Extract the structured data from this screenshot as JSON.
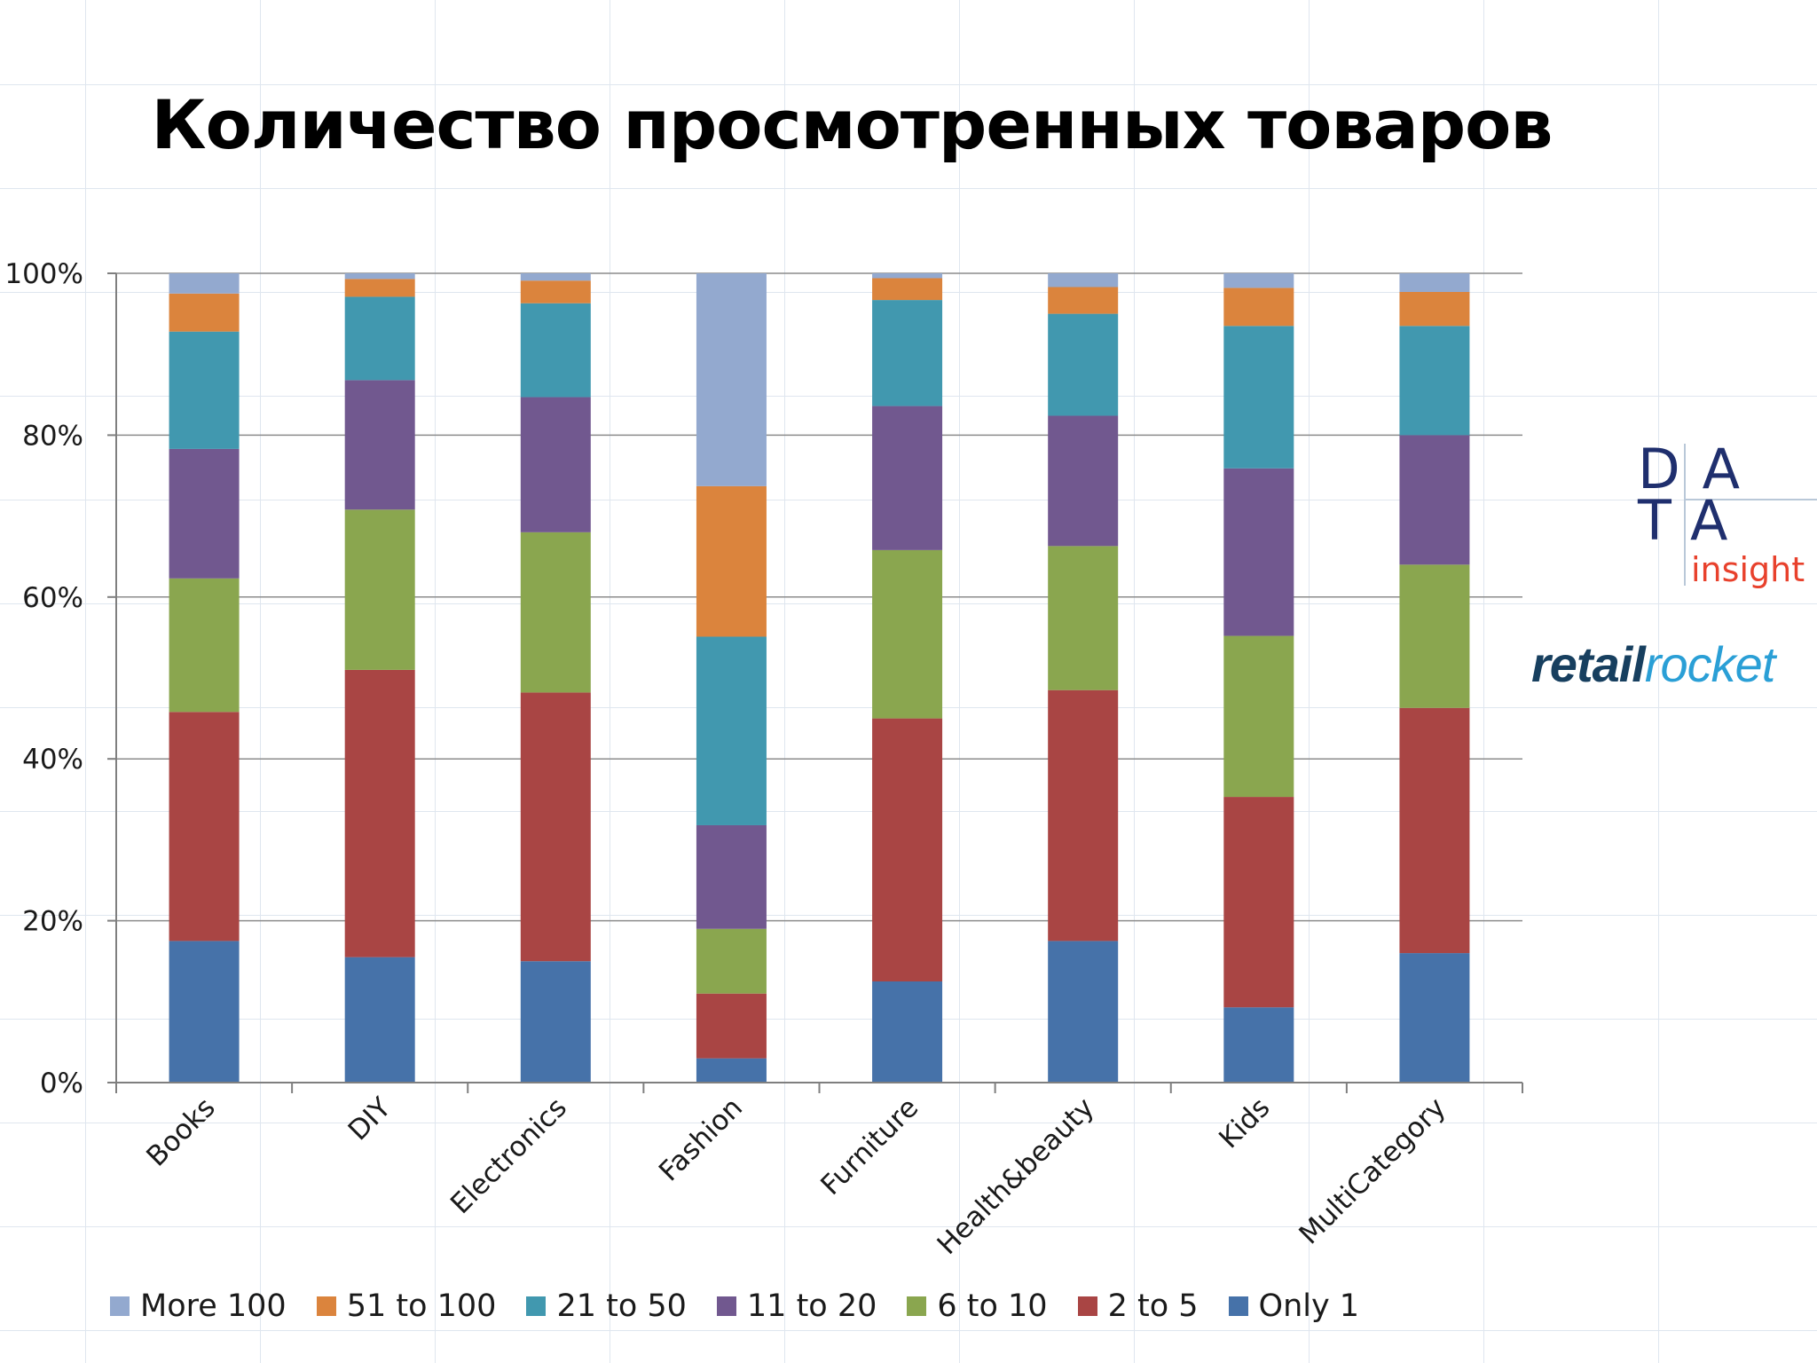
{
  "title": "Количество просмотренных товаров",
  "chart_data": {
    "type": "bar",
    "stacked": true,
    "normalized": true,
    "categories": [
      "Books",
      "DIY",
      "Electronics",
      "Fashion",
      "Furniture",
      "Health&beauty",
      "Kids",
      "MultiCategory"
    ],
    "series": [
      {
        "name": "Only 1",
        "color": "#4672a9",
        "values": [
          17.5,
          15.5,
          15.0,
          3.0,
          12.5,
          17.5,
          9.3,
          16.0
        ]
      },
      {
        "name": "2 to 5",
        "color": "#a94544",
        "values": [
          28.3,
          35.5,
          33.2,
          8.0,
          32.5,
          31.0,
          26.0,
          30.3
        ]
      },
      {
        "name": "6 to 10",
        "color": "#8aa64f",
        "values": [
          16.5,
          19.8,
          19.8,
          8.0,
          20.8,
          17.8,
          19.9,
          17.7
        ]
      },
      {
        "name": "11 to 20",
        "color": "#71588f",
        "values": [
          16.0,
          16.0,
          16.7,
          12.8,
          17.8,
          16.1,
          20.7,
          16.0
        ]
      },
      {
        "name": "21 to 50",
        "color": "#4198af",
        "values": [
          14.5,
          10.3,
          11.6,
          23.3,
          13.1,
          12.6,
          17.6,
          13.5
        ]
      },
      {
        "name": "51 to 100",
        "color": "#db843d",
        "values": [
          4.7,
          2.2,
          2.8,
          18.6,
          2.7,
          3.3,
          4.7,
          4.2
        ]
      },
      {
        "name": "More 100",
        "color": "#93a9cf",
        "values": [
          2.5,
          0.7,
          0.9,
          26.3,
          0.6,
          1.7,
          1.8,
          2.3
        ]
      }
    ],
    "y_ticks": [
      "0%",
      "20%",
      "40%",
      "60%",
      "80%",
      "100%"
    ],
    "ylim": [
      0,
      100
    ],
    "grid": true,
    "legend_position": "bottom"
  },
  "logos": {
    "data_insight": {
      "letters": "DATA",
      "line1": "DA",
      "line2": "TA",
      "word": "insight"
    },
    "retail_rocket": {
      "part1": "retail",
      "part2": "rocket"
    }
  }
}
